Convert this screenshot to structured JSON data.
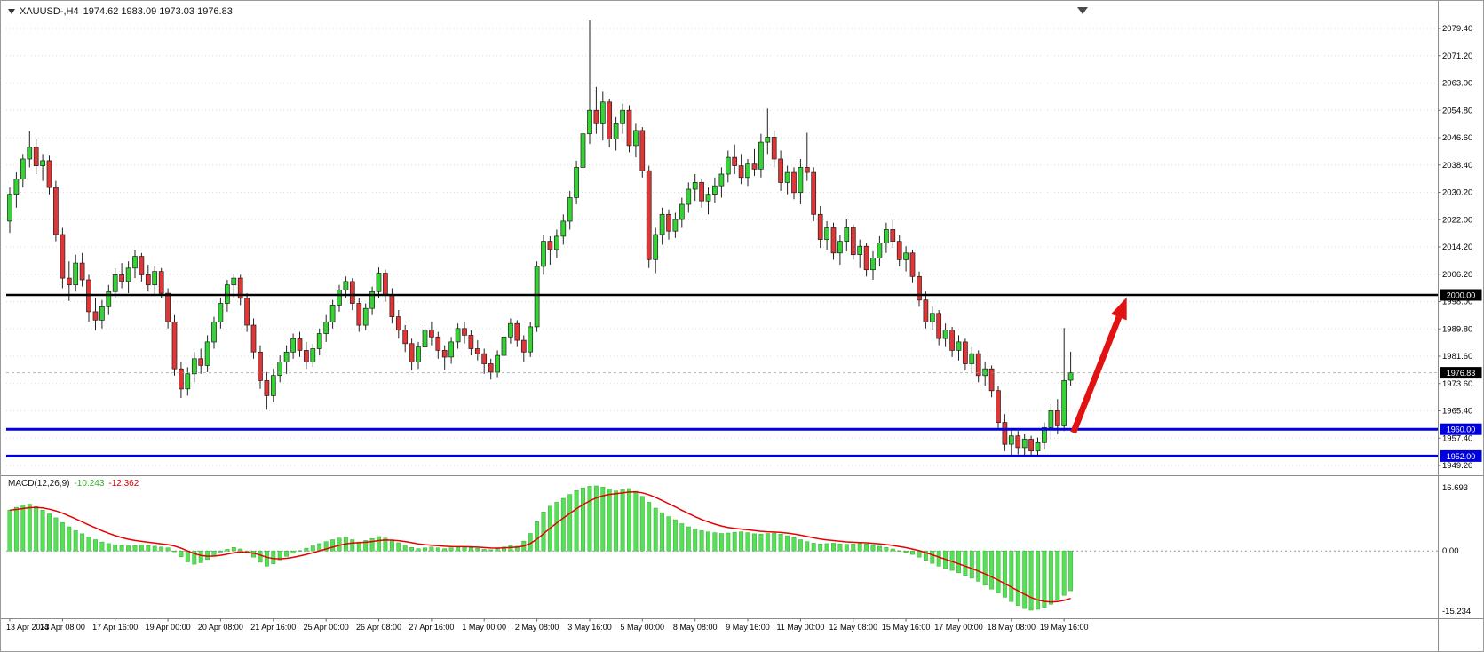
{
  "header": {
    "symbol_period": "XAUUSD-,H4",
    "ohlc": "1974.62 1983.09 1973.03 1976.83"
  },
  "indicator_label": {
    "name": "MACD(12,26,9)",
    "main": "-10.243",
    "signal": "-12.362"
  },
  "colors": {
    "bull": "#35D435",
    "bear": "#E03636",
    "wick": "#222222",
    "outline": "#1E1E1E",
    "macd_bar": "#58DE58",
    "macd_bar_edge": "#2FAF2F",
    "signal_line": "#E60000",
    "level_black": "#000000",
    "level_blue": "#0000DD",
    "bid_line": "#9A9A9A",
    "arrow": "#E01212",
    "grid": "#DDDDDD",
    "axis_line": "#8C8C8C",
    "axis_text": "#000000",
    "badge_text": "#FFFFFF",
    "shift_marker": "#4A4A4A"
  },
  "chart_data": [
    {
      "type": "candlestick",
      "title": "XAUUSD- H4",
      "timeframe": "H4",
      "x_tick_step": 8,
      "x_ticks": [
        "13 Apr 2023",
        "14 Apr 08:00",
        "17 Apr 16:00",
        "19 Apr 00:00",
        "20 Apr 08:00",
        "21 Apr 16:00",
        "25 Apr 00:00",
        "26 Apr 08:00",
        "27 Apr 16:00",
        "1 May 00:00",
        "2 May 08:00",
        "3 May 16:00",
        "5 May 00:00",
        "8 May 08:00",
        "9 May 16:00",
        "11 May 00:00",
        "12 May 08:00",
        "15 May 16:00",
        "17 May 00:00",
        "18 May 08:00",
        "19 May 16:00"
      ],
      "y_ticks": [
        "2079.40",
        "2071.20",
        "2063.00",
        "2054.80",
        "2046.60",
        "2038.40",
        "2030.20",
        "2022.00",
        "2014.20",
        "2006.20",
        "1998.00",
        "1989.80",
        "1981.60",
        "1973.60",
        "1965.40",
        "1957.40",
        "1949.20"
      ],
      "current_price": "1976.83",
      "candles": [
        [
          2022,
          2032,
          2018.5,
          2030
        ],
        [
          2030,
          2036.5,
          2026,
          2034.5
        ],
        [
          2034.5,
          2042,
          2032,
          2040.5
        ],
        [
          2040.5,
          2048.8,
          2038,
          2044
        ],
        [
          2044,
          2046.5,
          2036,
          2038.5
        ],
        [
          2038.5,
          2042,
          2034,
          2040
        ],
        [
          2040,
          2041.5,
          2030,
          2032
        ],
        [
          2032,
          2034,
          2016,
          2018
        ],
        [
          2018,
          2020,
          2002,
          2005
        ],
        [
          2005,
          2010,
          1998.2,
          2003
        ],
        [
          2003,
          2012,
          2001,
          2009.5
        ],
        [
          2009.5,
          2012.5,
          2002.5,
          2004.5
        ],
        [
          2004.5,
          2006,
          1992,
          1995
        ],
        [
          1995,
          1999,
          1989.5,
          1992.5
        ],
        [
          1992.5,
          1998.5,
          1990,
          1996.5
        ],
        [
          1996.5,
          2003,
          1994,
          2001
        ],
        [
          2001,
          2008,
          1999,
          2006
        ],
        [
          2006,
          2009.5,
          2002,
          2004
        ],
        [
          2004,
          2010,
          2000.5,
          2008
        ],
        [
          2008,
          2013.5,
          2005,
          2011.5
        ],
        [
          2011.5,
          2012.5,
          2004,
          2006
        ],
        [
          2006,
          2009,
          2001,
          2003
        ],
        [
          2003,
          2008.5,
          2000,
          2007
        ],
        [
          2007,
          2008,
          1999,
          2000.5
        ],
        [
          2000.5,
          2002,
          1990,
          1992
        ],
        [
          1992,
          1994,
          1976,
          1978
        ],
        [
          1978,
          1980,
          1969.3,
          1972
        ],
        [
          1972,
          1978.5,
          1970,
          1976.5
        ],
        [
          1976.5,
          1983,
          1974,
          1981
        ],
        [
          1981,
          1984,
          1976.5,
          1979
        ],
        [
          1979,
          1988,
          1977,
          1986
        ],
        [
          1986,
          1993.5,
          1984,
          1992
        ],
        [
          1992,
          1999,
          1990,
          1997.5
        ],
        [
          1997.5,
          2004.5,
          1995,
          2003
        ],
        [
          2003,
          2006.3,
          1999,
          2005
        ],
        [
          2005,
          2006,
          1997,
          1999
        ],
        [
          1999,
          2000.5,
          1989,
          1991
        ],
        [
          1991,
          1993,
          1981,
          1983
        ],
        [
          1983,
          1985,
          1972,
          1974.5
        ],
        [
          1974.5,
          1977,
          1965.8,
          1970
        ],
        [
          1970,
          1978,
          1968,
          1976
        ],
        [
          1976,
          1982,
          1974,
          1980
        ],
        [
          1980,
          1985,
          1976.5,
          1983
        ],
        [
          1983,
          1988.5,
          1981,
          1987
        ],
        [
          1987,
          1989,
          1981.5,
          1983.5
        ],
        [
          1983.5,
          1986,
          1978,
          1980
        ],
        [
          1980,
          1985.5,
          1978.5,
          1984
        ],
        [
          1984,
          1990,
          1982,
          1988.5
        ],
        [
          1988.5,
          1994,
          1986,
          1992
        ],
        [
          1992,
          1998.5,
          1990,
          1997
        ],
        [
          1997,
          2003,
          1995,
          2001.5
        ],
        [
          2001.5,
          2005.5,
          1999,
          2004
        ],
        [
          2004,
          2005,
          1995.5,
          1997.5
        ],
        [
          1997.5,
          1999,
          1989,
          1991
        ],
        [
          1991,
          1997.5,
          1989.5,
          1996
        ],
        [
          1996,
          2002.5,
          1994,
          2001
        ],
        [
          2001,
          2008.2,
          1999,
          2006.5
        ],
        [
          2006.5,
          2007.5,
          1998,
          2000
        ],
        [
          2000,
          2002,
          1991.5,
          1993.5
        ],
        [
          1993.5,
          1995.5,
          1987,
          1989.5
        ],
        [
          1989.5,
          1991,
          1983,
          1985.5
        ],
        [
          1985.5,
          1987,
          1977.5,
          1980
        ],
        [
          1980,
          1986,
          1978,
          1984.5
        ],
        [
          1984.5,
          1991,
          1982.5,
          1989.5
        ],
        [
          1989.5,
          1992,
          1985,
          1987.5
        ],
        [
          1987.5,
          1989,
          1981,
          1983.5
        ],
        [
          1983.5,
          1985,
          1977.8,
          1981.5
        ],
        [
          1981.5,
          1987.5,
          1979.5,
          1986
        ],
        [
          1986,
          1991.5,
          1984,
          1990
        ],
        [
          1990,
          1992,
          1985.5,
          1988
        ],
        [
          1988,
          1989.5,
          1982,
          1984
        ],
        [
          1984,
          1986.5,
          1980.5,
          1982.5
        ],
        [
          1982.5,
          1984,
          1976.5,
          1979.5
        ],
        [
          1979.5,
          1981,
          1974.8,
          1977
        ],
        [
          1977,
          1983.5,
          1975.5,
          1982
        ],
        [
          1982,
          1989,
          1980,
          1987.5
        ],
        [
          1987.5,
          1993,
          1985.5,
          1991.5
        ],
        [
          1991.5,
          1992.5,
          1984.5,
          1986.5
        ],
        [
          1986.5,
          1988,
          1980,
          1983
        ],
        [
          1983,
          1992,
          1981.5,
          1990.5
        ],
        [
          1990.5,
          2010,
          1989,
          2008.5
        ],
        [
          2008.5,
          2018,
          2006,
          2016
        ],
        [
          2016,
          2017.5,
          2009,
          2013.5
        ],
        [
          2013.5,
          2019.5,
          2011,
          2017.5
        ],
        [
          2017.5,
          2024,
          2015,
          2022
        ],
        [
          2022,
          2031,
          2019.5,
          2029
        ],
        [
          2029,
          2040,
          2027,
          2038
        ],
        [
          2038,
          2050,
          2035,
          2048
        ],
        [
          2048,
          2081.8,
          2045,
          2055
        ],
        [
          2055,
          2062,
          2048,
          2051
        ],
        [
          2051,
          2060.5,
          2046,
          2057.5
        ],
        [
          2057.5,
          2058.5,
          2044,
          2046.5
        ],
        [
          2046.5,
          2053,
          2043,
          2051
        ],
        [
          2051,
          2057,
          2048,
          2055
        ],
        [
          2055,
          2056.5,
          2042.5,
          2044.5
        ],
        [
          2044.5,
          2051,
          2041,
          2049
        ],
        [
          2049,
          2050,
          2035,
          2037
        ],
        [
          2037,
          2038.5,
          2008,
          2010.5
        ],
        [
          2010.5,
          2020,
          2006.5,
          2018
        ],
        [
          2018,
          2026,
          2015,
          2024
        ],
        [
          2024,
          2025.5,
          2016.5,
          2019
        ],
        [
          2019,
          2024.5,
          2017,
          2022.5
        ],
        [
          2022.5,
          2029,
          2020,
          2027
        ],
        [
          2027,
          2033.5,
          2024.5,
          2031.5
        ],
        [
          2031.5,
          2036,
          2028,
          2033.5
        ],
        [
          2033.5,
          2034.5,
          2026,
          2028
        ],
        [
          2028,
          2032,
          2024,
          2030
        ],
        [
          2030,
          2035,
          2027.5,
          2032.5
        ],
        [
          2032.5,
          2038,
          2029,
          2036
        ],
        [
          2036,
          2043,
          2033.5,
          2041
        ],
        [
          2041,
          2044.8,
          2036,
          2038.5
        ],
        [
          2038.5,
          2042,
          2033,
          2035
        ],
        [
          2035,
          2040.5,
          2032.5,
          2039
        ],
        [
          2039,
          2043.5,
          2035.5,
          2037.5
        ],
        [
          2037.5,
          2048,
          2035,
          2045.5
        ],
        [
          2045.5,
          2055.5,
          2042,
          2047
        ],
        [
          2047,
          2049,
          2038,
          2040.5
        ],
        [
          2040.5,
          2043,
          2031,
          2033.5
        ],
        [
          2033.5,
          2038.5,
          2030,
          2036.5
        ],
        [
          2036.5,
          2038,
          2028.5,
          2030.5
        ],
        [
          2030.5,
          2040.5,
          2027,
          2038
        ],
        [
          2038,
          2048.3,
          2034,
          2036.5
        ],
        [
          2036.5,
          2038,
          2022,
          2024
        ],
        [
          2024,
          2026.5,
          2014,
          2016.5
        ],
        [
          2016.5,
          2022,
          2013.5,
          2020
        ],
        [
          2020,
          2021.5,
          2010.5,
          2012.5
        ],
        [
          2012.5,
          2018,
          2009,
          2016
        ],
        [
          2016,
          2022.5,
          2013,
          2020
        ],
        [
          2020,
          2021,
          2010.5,
          2012
        ],
        [
          2012,
          2016.5,
          2008,
          2014.5
        ],
        [
          2014.5,
          2015.5,
          2005.5,
          2007.5
        ],
        [
          2007.5,
          2013,
          2004.5,
          2011
        ],
        [
          2011,
          2017.5,
          2008.5,
          2015.5
        ],
        [
          2015.5,
          2021.5,
          2012.5,
          2019.5
        ],
        [
          2019.5,
          2022.3,
          2014,
          2016
        ],
        [
          2016,
          2018,
          2008.5,
          2010.5
        ],
        [
          2010.5,
          2014.5,
          2007,
          2012.5
        ],
        [
          2012.5,
          2013.5,
          2003.5,
          2005.5
        ],
        [
          2005.5,
          2007,
          1996.5,
          1998.5
        ],
        [
          1998.5,
          2001,
          1990,
          1992
        ],
        [
          1992,
          1996.5,
          1989.5,
          1994.5
        ],
        [
          1994.5,
          1995.5,
          1985,
          1987
        ],
        [
          1987,
          1991.5,
          1984.5,
          1989.5
        ],
        [
          1989.5,
          1990.5,
          1981.5,
          1983.5
        ],
        [
          1983.5,
          1988,
          1980.5,
          1986
        ],
        [
          1986,
          1987,
          1977.5,
          1979.5
        ],
        [
          1979.5,
          1984.5,
          1977,
          1982.5
        ],
        [
          1982.5,
          1983.5,
          1974,
          1976
        ],
        [
          1976,
          1980,
          1973,
          1978
        ],
        [
          1978,
          1979,
          1969.5,
          1971.5
        ],
        [
          1971.5,
          1973,
          1960,
          1962
        ],
        [
          1962,
          1964.5,
          1953.5,
          1955.5
        ],
        [
          1955.5,
          1960,
          1951.9,
          1958
        ],
        [
          1958,
          1959.5,
          1952.5,
          1954.5
        ],
        [
          1954.5,
          1958.5,
          1952,
          1957
        ],
        [
          1957,
          1958,
          1952.3,
          1953.5
        ],
        [
          1953.5,
          1957.5,
          1951.9,
          1956
        ],
        [
          1956,
          1962,
          1954,
          1960.5
        ],
        [
          1960.5,
          1967.5,
          1957,
          1965.5
        ],
        [
          1965.5,
          1969,
          1958.5,
          1961
        ],
        [
          1961,
          1990.2,
          1959.5,
          1974.5
        ],
        [
          1974.62,
          1983.09,
          1973.03,
          1976.83
        ]
      ],
      "levels": [
        {
          "price": 2000.0,
          "label": "2000.00",
          "color": "#000000",
          "width": 2.5
        },
        {
          "price": 1960.0,
          "label": "1960.00",
          "color": "#0000DD",
          "width": 3
        },
        {
          "price": 1952.0,
          "label": "1952.00",
          "color": "#0000DD",
          "width": 3
        }
      ],
      "bid": {
        "price": 1976.83,
        "label": "1976.83"
      },
      "arrow": {
        "direction": "up",
        "from": {
          "candle": 161.4,
          "price": 1959.0
        },
        "to": {
          "candle": 169.5,
          "price": 1999.3
        }
      }
    },
    {
      "type": "bar",
      "subtype": "macd-histogram-with-signal-line",
      "name": "MACD(12,26,9)",
      "signal_period": 9,
      "y_ticks": [
        "16.693",
        "0.00",
        "-15.234"
      ],
      "last_main": "-10.243",
      "last_signal": "-12.362",
      "values": [
        10.5,
        11.2,
        11.8,
        12.0,
        11.4,
        10.5,
        9.5,
        8.5,
        7.3,
        6.2,
        5.2,
        4.4,
        3.6,
        2.9,
        2.3,
        1.9,
        1.6,
        1.4,
        1.3,
        1.4,
        1.5,
        1.4,
        1.2,
        1.0,
        0.8,
        -0.2,
        -1.5,
        -2.8,
        -3.4,
        -3.0,
        -2.2,
        -1.2,
        -0.3,
        0.4,
        0.9,
        0.5,
        -0.5,
        -1.6,
        -2.9,
        -3.9,
        -3.3,
        -2.3,
        -1.4,
        -0.6,
        0.1,
        0.7,
        1.3,
        1.9,
        2.4,
        2.9,
        3.3,
        3.5,
        2.9,
        2.3,
        2.7,
        3.2,
        3.7,
        3.3,
        2.7,
        2.1,
        1.5,
        0.9,
        0.6,
        0.8,
        1.0,
        0.8,
        0.6,
        0.8,
        1.0,
        1.1,
        0.9,
        0.7,
        0.4,
        0.3,
        0.6,
        1.0,
        1.5,
        1.2,
        2.5,
        4.5,
        7.5,
        10.0,
        11.5,
        12.5,
        13.5,
        14.5,
        15.5,
        16.2,
        16.6,
        16.693,
        16.4,
        15.9,
        15.4,
        15.7,
        16.0,
        15.3,
        14.0,
        12.5,
        11.0,
        9.8,
        8.8,
        8.0,
        7.0,
        6.2,
        5.6,
        5.2,
        4.9,
        4.7,
        4.5,
        4.6,
        4.8,
        4.9,
        4.7,
        4.4,
        4.3,
        4.5,
        4.6,
        4.3,
        3.9,
        3.4,
        2.9,
        2.4,
        2.0,
        1.8,
        1.9,
        2.0,
        1.8,
        1.7,
        1.8,
        1.9,
        1.8,
        1.5,
        1.2,
        0.9,
        0.5,
        0.1,
        -0.4,
        -0.9,
        -1.6,
        -2.4,
        -3.2,
        -3.9,
        -4.5,
        -5.0,
        -5.6,
        -6.3,
        -7.0,
        -7.8,
        -8.8,
        -9.8,
        -10.8,
        -11.9,
        -13.0,
        -14.0,
        -14.8,
        -15.234,
        -15.0,
        -14.5,
        -13.7,
        -12.7,
        -11.4,
        -10.243
      ]
    }
  ]
}
